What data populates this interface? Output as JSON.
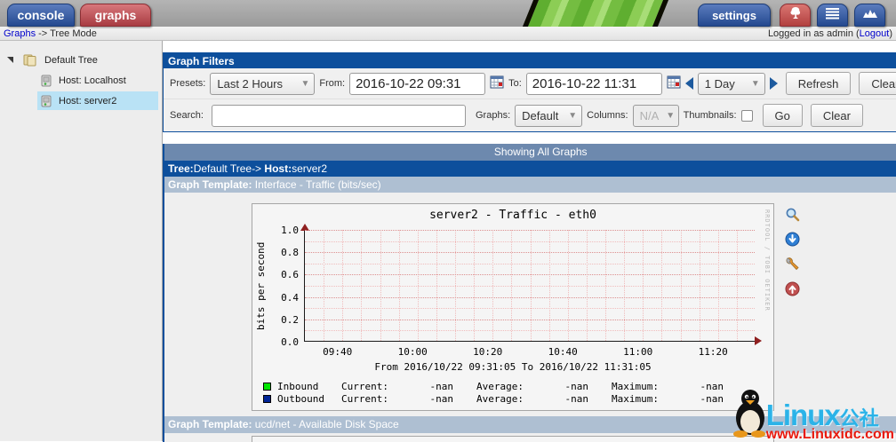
{
  "header": {
    "tab_console": "console",
    "tab_graphs": "graphs",
    "settings_label": "settings",
    "breadcrumb": {
      "link": "Graphs",
      "separator": "->",
      "current": "Tree Mode"
    },
    "login": {
      "prefix": "Logged in as admin (",
      "logout": "Logout",
      "suffix": ")"
    }
  },
  "sidebar": {
    "tree": [
      {
        "label": "Default Tree"
      },
      {
        "label": "Host: Localhost"
      },
      {
        "label": "Host: server2"
      }
    ]
  },
  "filters": {
    "title": "Graph Filters",
    "presets_label": "Presets:",
    "presets_value": "Last 2 Hours",
    "from_label": "From:",
    "from_value": "2016-10-22 09:31",
    "to_label": "To:",
    "to_value": "2016-10-22 11:31",
    "range_value": "1 Day",
    "refresh_label": "Refresh",
    "clear_label": "Clear",
    "search_label": "Search:",
    "search_value": "",
    "graphs_label": "Graphs:",
    "graphs_value": "Default",
    "columns_label": "Columns:",
    "columns_value": "N/A",
    "thumbnails_label": "Thumbnails:",
    "go_label": "Go",
    "clear2_label": "Clear"
  },
  "results": {
    "showing": "Showing All Graphs",
    "tree_label": "Tree:",
    "tree_value": "Default Tree",
    "arrow": "-> ",
    "host_label": "Host:",
    "host_value": "server2",
    "template1_label": "Graph Template:",
    "template1_value": " Interface - Traffic (bits/sec)",
    "template2_label": "Graph Template:",
    "template2_value": " ucd/net - Available Disk Space"
  },
  "chart_data": {
    "type": "line",
    "title": "server2 - Traffic - eth0",
    "ylabel": "bits per second",
    "ylim": [
      0.0,
      1.0
    ],
    "y_ticks": [
      "1.0",
      "0.8",
      "0.6",
      "0.4",
      "0.2",
      "0.0"
    ],
    "x_ticks": [
      "09:40",
      "10:00",
      "10:20",
      "10:40",
      "11:00",
      "11:20"
    ],
    "x_range": "From 2016/10/22 09:31:05 To 2016/10/22 11:31:05",
    "grid": true,
    "legend_position": "bottom",
    "legend_cols": [
      "Current:",
      "Average:",
      "Maximum:"
    ],
    "series": [
      {
        "name": "Inbound",
        "color": "#00e600",
        "current": "-nan",
        "average": "-nan",
        "maximum": "-nan",
        "values": []
      },
      {
        "name": "Outbound",
        "color": "#002497",
        "current": "-nan",
        "average": "-nan",
        "maximum": "-nan",
        "values": []
      }
    ],
    "signature": "RRDTOOL / TOBI OETIKER"
  },
  "watermark": {
    "brand": "Linux",
    "brand_cn": "公社",
    "url": "www.Linuxidc.com"
  }
}
